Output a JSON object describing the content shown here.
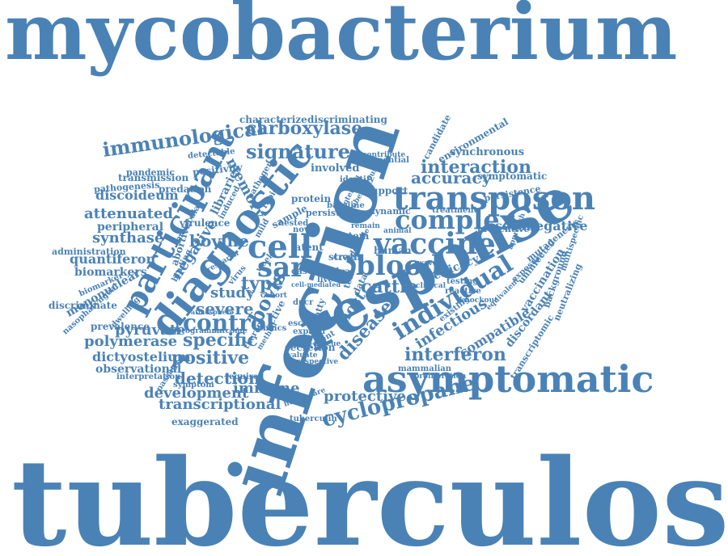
{
  "word_color": "#4A82B6",
  "background_color": "#FFFFFF",
  "words": [
    {
      "text": "mycobacterium",
      "weight": 100
    },
    {
      "text": "tuberculosis",
      "weight": 100
    },
    {
      "text": "infection",
      "weight": 90
    },
    {
      "text": "response",
      "weight": 75
    },
    {
      "text": "asymptomatic",
      "weight": 58
    },
    {
      "text": "diagnostic",
      "weight": 55
    },
    {
      "text": "transposon",
      "weight": 50
    },
    {
      "text": "participant",
      "weight": 47
    },
    {
      "text": "cell",
      "weight": 45
    },
    {
      "text": "vaccine",
      "weight": 40
    },
    {
      "text": "blood",
      "weight": 38
    },
    {
      "text": "complex",
      "weight": 38
    },
    {
      "text": "sar",
      "weight": 38
    },
    {
      "text": "individual",
      "weight": 37
    },
    {
      "text": "control",
      "weight": 34
    },
    {
      "text": "signature",
      "weight": 33
    },
    {
      "text": "cyclopropane",
      "weight": 32
    },
    {
      "text": "carboxylase",
      "weight": 30
    },
    {
      "text": "interaction",
      "weight": 30
    },
    {
      "text": "interferon",
      "weight": 30
    },
    {
      "text": "positive",
      "weight": 30
    },
    {
      "text": "specific",
      "weight": 30
    },
    {
      "text": "immunological",
      "weight": 30
    },
    {
      "text": "accuracy",
      "weight": 28
    },
    {
      "text": "cattle",
      "weight": 28
    },
    {
      "text": "bovis",
      "weight": 28
    },
    {
      "text": "disease",
      "weight": 27
    },
    {
      "text": "protective",
      "weight": 27
    },
    {
      "text": "detection",
      "weight": 27
    },
    {
      "text": "type",
      "weight": 26
    },
    {
      "text": "severe",
      "weight": 25
    },
    {
      "text": "bovine",
      "weight": 24
    },
    {
      "text": "negative",
      "weight": 24
    },
    {
      "text": "infectious",
      "weight": 24
    },
    {
      "text": "development",
      "weight": 24
    },
    {
      "text": "transcriptional",
      "weight": 23
    },
    {
      "text": "immune",
      "weight": 22
    },
    {
      "text": "compatible",
      "weight": 22
    },
    {
      "text": "attenuated",
      "weight": 22
    },
    {
      "text": "synthase",
      "weight": 22
    },
    {
      "text": "polymerase",
      "weight": 22
    },
    {
      "text": "pyruvate",
      "weight": 22
    },
    {
      "text": "discoideum",
      "weight": 21
    },
    {
      "text": "quantiferon",
      "weight": 21
    },
    {
      "text": "seronegative",
      "weight": 20
    },
    {
      "text": "study",
      "weight": 20
    },
    {
      "text": "dictyostelium",
      "weight": 19
    },
    {
      "text": "memory",
      "weight": 19
    },
    {
      "text": "host",
      "weight": 19
    },
    {
      "text": "discordant",
      "weight": 18
    },
    {
      "text": "vaccination",
      "weight": 18
    },
    {
      "text": "observational",
      "weight": 17
    },
    {
      "text": "mononuclear",
      "weight": 17
    },
    {
      "text": "biomarkers",
      "weight": 17
    },
    {
      "text": "efficacy",
      "weight": 17
    },
    {
      "text": "peripheral",
      "weight": 16
    },
    {
      "text": "libraries",
      "weight": 16
    },
    {
      "text": "discriminating",
      "weight": 15
    },
    {
      "text": "environmental",
      "weight": 15
    },
    {
      "text": "exaggerated",
      "weight": 15
    },
    {
      "text": "involved",
      "weight": 15
    },
    {
      "text": "discriminate",
      "weight": 14
    },
    {
      "text": "synchronous",
      "weight": 14
    },
    {
      "text": "transmission",
      "weight": 14
    },
    {
      "text": "positivity",
      "weight": 13
    },
    {
      "text": "characterize",
      "weight": 13
    },
    {
      "text": "virulence",
      "weight": 13
    },
    {
      "text": "prevalence",
      "weight": 13
    },
    {
      "text": "symptomatic",
      "weight": 13
    },
    {
      "text": "strain",
      "weight": 13
    },
    {
      "text": "viral",
      "weight": 13
    },
    {
      "text": "pathogenesis",
      "weight": 12
    },
    {
      "text": "persistence",
      "weight": 12
    },
    {
      "text": "predation",
      "weight": 12
    },
    {
      "text": "human",
      "weight": 12
    },
    {
      "text": "system",
      "weight": 12
    },
    {
      "text": "secretion",
      "weight": 12
    },
    {
      "text": "support",
      "weight": 12
    },
    {
      "text": "protein",
      "weight": 12
    },
    {
      "text": "latent",
      "weight": 12
    },
    {
      "text": "pandemic",
      "weight": 12
    },
    {
      "text": "preventive",
      "weight": 12
    },
    {
      "text": "administration",
      "weight": 11
    },
    {
      "text": "candidate",
      "weight": 11
    },
    {
      "text": "mutagenesis",
      "weight": 11
    },
    {
      "text": "transcriptomic",
      "weight": 11
    },
    {
      "text": "background",
      "weight": 11
    },
    {
      "text": "neutralizing",
      "weight": 11
    },
    {
      "text": "persist",
      "weight": 11
    },
    {
      "text": "uninfected",
      "weight": 11
    },
    {
      "text": "detectable",
      "weight": 11
    },
    {
      "text": "sample",
      "weight": 11
    },
    {
      "text": "tuberculin",
      "weight": 10
    },
    {
      "text": "essential",
      "weight": 10
    },
    {
      "text": "interpretation",
      "weight": 10
    },
    {
      "text": "symptom",
      "weight": 10
    },
    {
      "text": "mammalian",
      "weight": 10
    },
    {
      "text": "biomarker",
      "weight": 10
    },
    {
      "text": "dynamic",
      "weight": 10
    },
    {
      "text": "pbmcs",
      "weight": 10
    },
    {
      "text": "case",
      "weight": 10
    },
    {
      "text": "rapid",
      "weight": 10
    },
    {
      "text": "novel",
      "weight": 10
    },
    {
      "text": "required",
      "weight": 10
    },
    {
      "text": "contribute",
      "weight": 10
    },
    {
      "text": "dwelling",
      "weight": 9
    },
    {
      "text": "exposure",
      "weight": 9
    },
    {
      "text": "passage",
      "weight": 9
    },
    {
      "text": "proliferation",
      "weight": 9
    },
    {
      "text": "therapy",
      "weight": 9
    },
    {
      "text": "prospective",
      "weight": 9
    },
    {
      "text": "existing",
      "weight": 9
    },
    {
      "text": "identify",
      "weight": 9
    },
    {
      "text": "active",
      "weight": 9
    },
    {
      "text": "remain",
      "weight": 9
    },
    {
      "text": "evaluate",
      "weight": 9
    },
    {
      "text": "animal",
      "weight": 9
    },
    {
      "text": "treatment",
      "weight": 9
    },
    {
      "text": "testing",
      "weight": 9
    },
    {
      "text": "cross",
      "weight": 9
    },
    {
      "text": "expand",
      "weight": 9
    },
    {
      "text": "healthcare",
      "weight": 9
    },
    {
      "text": "baseline",
      "weight": 9
    },
    {
      "text": "knockout",
      "weight": 9
    },
    {
      "text": "pathogen",
      "weight": 9
    },
    {
      "text": "virus",
      "weight": 9
    },
    {
      "text": "escape",
      "weight": 9
    },
    {
      "text": "equivalent",
      "weight": 8
    },
    {
      "text": "nasopharyngeal",
      "weight": 8
    },
    {
      "text": "abortive",
      "weight": 8
    },
    {
      "text": "molecular",
      "weight": 8
    },
    {
      "text": "programme",
      "weight": 8
    },
    {
      "text": "reactive",
      "weight": 8
    },
    {
      "text": "present",
      "weight": 8
    },
    {
      "text": "cohort",
      "weight": 8
    },
    {
      "text": "fatty",
      "weight": 8
    },
    {
      "text": "research",
      "weight": 8
    },
    {
      "text": "atmosphere",
      "weight": 8
    },
    {
      "text": "clinical",
      "weight": 8
    },
    {
      "text": "multispecific",
      "weight": 8
    },
    {
      "text": "induced",
      "weight": 8
    },
    {
      "text": "outcome",
      "weight": 8
    },
    {
      "text": "potential",
      "weight": 8
    },
    {
      "text": "approach",
      "weight": 8
    },
    {
      "text": "dpcr",
      "weight": 8
    },
    {
      "text": "waves",
      "weight": 8
    },
    {
      "text": "rescue",
      "weight": 8
    },
    {
      "text": "nested",
      "weight": 8
    },
    {
      "text": "week",
      "weight": 8
    },
    {
      "text": "mild",
      "weight": 8
    },
    {
      "text": "test",
      "weight": 8
    },
    {
      "text": "data",
      "weight": 8
    },
    {
      "text": "live",
      "weight": 8
    },
    {
      "text": "binding",
      "weight": 8
    },
    {
      "text": "cell-mediated",
      "weight": 8
    },
    {
      "text": "tuberculous",
      "weight": 8
    },
    {
      "text": "defense",
      "weight": 8
    },
    {
      "text": "method",
      "weight": 8
    }
  ]
}
